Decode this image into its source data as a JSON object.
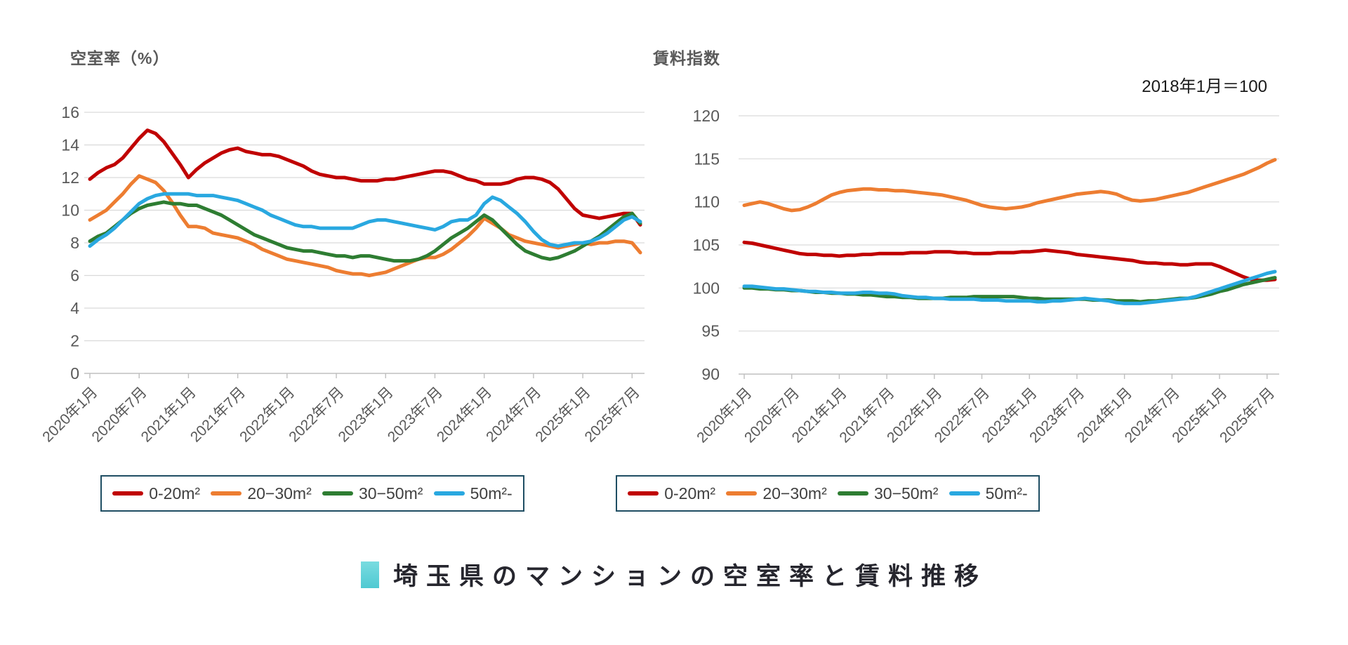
{
  "chart_data": [
    {
      "id": "vacancy",
      "type": "line",
      "title": "空室率（%）",
      "ylabel": "空室率（%）",
      "ylim": [
        0,
        16
      ],
      "y_ticks": [
        0,
        2,
        4,
        6,
        8,
        10,
        12,
        14,
        16
      ],
      "grid": true,
      "legend_position": "bottom",
      "x_unit": "month",
      "x_start_label": "2020年1月",
      "x_end_label": "2025年7月",
      "x_tick_labels": [
        "2020年1月",
        "2020年7月",
        "2021年1月",
        "2021年7月",
        "2022年1月",
        "2022年7月",
        "2023年1月",
        "2023年7月",
        "2024年1月",
        "2024年7月",
        "2025年1月",
        "2025年7月"
      ],
      "x_tick_indices": [
        0,
        6,
        12,
        18,
        24,
        30,
        36,
        42,
        48,
        54,
        60,
        66
      ],
      "series": [
        {
          "name": "0-20m²",
          "color": "#c00000",
          "values": [
            11.9,
            12.3,
            12.6,
            12.8,
            13.2,
            13.8,
            14.4,
            14.9,
            14.7,
            14.2,
            13.5,
            12.8,
            12.0,
            12.5,
            12.9,
            13.2,
            13.5,
            13.7,
            13.8,
            13.6,
            13.5,
            13.4,
            13.4,
            13.3,
            13.1,
            12.9,
            12.7,
            12.4,
            12.2,
            12.1,
            12.0,
            12.0,
            11.9,
            11.8,
            11.8,
            11.8,
            11.9,
            11.9,
            12.0,
            12.1,
            12.2,
            12.3,
            12.4,
            12.4,
            12.3,
            12.1,
            11.9,
            11.8,
            11.6,
            11.6,
            11.6,
            11.7,
            11.9,
            12.0,
            12.0,
            11.9,
            11.7,
            11.3,
            10.7,
            10.1,
            9.7,
            9.6,
            9.5,
            9.6,
            9.7,
            9.8,
            9.8,
            9.1
          ]
        },
        {
          "name": "20−30m²",
          "color": "#ed7d31",
          "values": [
            9.4,
            9.7,
            10.0,
            10.5,
            11.0,
            11.6,
            12.1,
            11.9,
            11.7,
            11.2,
            10.5,
            9.7,
            9.0,
            9.0,
            8.9,
            8.6,
            8.5,
            8.4,
            8.3,
            8.1,
            7.9,
            7.6,
            7.4,
            7.2,
            7.0,
            6.9,
            6.8,
            6.7,
            6.6,
            6.5,
            6.3,
            6.2,
            6.1,
            6.1,
            6.0,
            6.1,
            6.2,
            6.4,
            6.6,
            6.8,
            7.0,
            7.1,
            7.1,
            7.3,
            7.6,
            8.0,
            8.4,
            8.9,
            9.5,
            9.2,
            8.9,
            8.5,
            8.3,
            8.1,
            8.0,
            7.9,
            7.8,
            7.7,
            7.8,
            7.9,
            8.0,
            7.9,
            8.0,
            8.0,
            8.1,
            8.1,
            8.0,
            7.4
          ]
        },
        {
          "name": "30−50m²",
          "color": "#2e7d32",
          "values": [
            8.1,
            8.4,
            8.6,
            9.0,
            9.4,
            9.8,
            10.1,
            10.3,
            10.4,
            10.5,
            10.4,
            10.4,
            10.3,
            10.3,
            10.1,
            9.9,
            9.7,
            9.4,
            9.1,
            8.8,
            8.5,
            8.3,
            8.1,
            7.9,
            7.7,
            7.6,
            7.5,
            7.5,
            7.4,
            7.3,
            7.2,
            7.2,
            7.1,
            7.2,
            7.2,
            7.1,
            7.0,
            6.9,
            6.9,
            6.9,
            7.0,
            7.2,
            7.5,
            7.9,
            8.3,
            8.6,
            8.9,
            9.3,
            9.7,
            9.4,
            8.9,
            8.4,
            7.9,
            7.5,
            7.3,
            7.1,
            7.0,
            7.1,
            7.3,
            7.5,
            7.8,
            8.1,
            8.4,
            8.8,
            9.2,
            9.6,
            9.8,
            9.2
          ]
        },
        {
          "name": "50m²-",
          "color": "#29a8e0",
          "values": [
            7.8,
            8.2,
            8.5,
            8.9,
            9.4,
            9.9,
            10.4,
            10.7,
            10.9,
            11.0,
            11.0,
            11.0,
            11.0,
            10.9,
            10.9,
            10.9,
            10.8,
            10.7,
            10.6,
            10.4,
            10.2,
            10.0,
            9.7,
            9.5,
            9.3,
            9.1,
            9.0,
            9.0,
            8.9,
            8.9,
            8.9,
            8.9,
            8.9,
            9.1,
            9.3,
            9.4,
            9.4,
            9.3,
            9.2,
            9.1,
            9.0,
            8.9,
            8.8,
            9.0,
            9.3,
            9.4,
            9.4,
            9.7,
            10.4,
            10.8,
            10.6,
            10.2,
            9.8,
            9.3,
            8.7,
            8.2,
            7.9,
            7.8,
            7.9,
            8.0,
            8.0,
            8.1,
            8.3,
            8.6,
            9.0,
            9.4,
            9.6,
            9.3
          ]
        }
      ]
    },
    {
      "id": "rent-index",
      "type": "line",
      "title": "賃料指数",
      "note": "2018年1月＝100",
      "ylabel": "賃料指数",
      "ylim": [
        90,
        120
      ],
      "y_ticks": [
        90,
        95,
        100,
        105,
        110,
        115,
        120
      ],
      "grid": true,
      "legend_position": "bottom",
      "x_unit": "month",
      "x_start_label": "2020年1月",
      "x_end_label": "2025年7月",
      "x_tick_labels": [
        "2020年1月",
        "2020年7月",
        "2021年1月",
        "2021年7月",
        "2022年1月",
        "2022年7月",
        "2023年1月",
        "2023年7月",
        "2024年1月",
        "2024年7月",
        "2025年1月",
        "2025年7月"
      ],
      "x_tick_indices": [
        0,
        6,
        12,
        18,
        24,
        30,
        36,
        42,
        48,
        54,
        60,
        66
      ],
      "series": [
        {
          "name": "0-20m²",
          "color": "#c00000",
          "values": [
            105.3,
            105.2,
            105.0,
            104.8,
            104.6,
            104.4,
            104.2,
            104.0,
            103.9,
            103.9,
            103.8,
            103.8,
            103.7,
            103.8,
            103.8,
            103.9,
            103.9,
            104.0,
            104.0,
            104.0,
            104.0,
            104.1,
            104.1,
            104.1,
            104.2,
            104.2,
            104.2,
            104.1,
            104.1,
            104.0,
            104.0,
            104.0,
            104.1,
            104.1,
            104.1,
            104.2,
            104.2,
            104.3,
            104.4,
            104.3,
            104.2,
            104.1,
            103.9,
            103.8,
            103.7,
            103.6,
            103.5,
            103.4,
            103.3,
            103.2,
            103.0,
            102.9,
            102.9,
            102.8,
            102.8,
            102.7,
            102.7,
            102.8,
            102.8,
            102.8,
            102.5,
            102.1,
            101.7,
            101.3,
            101.0,
            100.9,
            100.9,
            101.0
          ]
        },
        {
          "name": "20−30m²",
          "color": "#ed7d31",
          "values": [
            109.6,
            109.8,
            110.0,
            109.8,
            109.5,
            109.2,
            109.0,
            109.1,
            109.4,
            109.8,
            110.3,
            110.8,
            111.1,
            111.3,
            111.4,
            111.5,
            111.5,
            111.4,
            111.4,
            111.3,
            111.3,
            111.2,
            111.1,
            111.0,
            110.9,
            110.8,
            110.6,
            110.4,
            110.2,
            109.9,
            109.6,
            109.4,
            109.3,
            109.2,
            109.3,
            109.4,
            109.6,
            109.9,
            110.1,
            110.3,
            110.5,
            110.7,
            110.9,
            111.0,
            111.1,
            111.2,
            111.1,
            110.9,
            110.5,
            110.2,
            110.1,
            110.2,
            110.3,
            110.5,
            110.7,
            110.9,
            111.1,
            111.4,
            111.7,
            112.0,
            112.3,
            112.6,
            112.9,
            113.2,
            113.6,
            114.0,
            114.5,
            114.9
          ]
        },
        {
          "name": "30−50m²",
          "color": "#2e7d32",
          "values": [
            100.0,
            100.0,
            99.9,
            99.9,
            99.8,
            99.8,
            99.7,
            99.7,
            99.6,
            99.5,
            99.5,
            99.4,
            99.4,
            99.3,
            99.3,
            99.2,
            99.2,
            99.1,
            99.0,
            99.0,
            98.9,
            98.9,
            98.8,
            98.8,
            98.8,
            98.8,
            98.9,
            98.9,
            98.9,
            99.0,
            99.0,
            99.0,
            99.0,
            99.0,
            99.0,
            98.9,
            98.8,
            98.8,
            98.7,
            98.7,
            98.7,
            98.7,
            98.7,
            98.7,
            98.6,
            98.6,
            98.6,
            98.5,
            98.5,
            98.5,
            98.4,
            98.5,
            98.5,
            98.6,
            98.7,
            98.8,
            98.8,
            98.9,
            99.1,
            99.3,
            99.6,
            99.8,
            100.1,
            100.4,
            100.6,
            100.8,
            101.0,
            101.2
          ]
        },
        {
          "name": "50m²-",
          "color": "#29a8e0",
          "values": [
            100.2,
            100.2,
            100.1,
            100.0,
            99.9,
            99.9,
            99.8,
            99.7,
            99.6,
            99.6,
            99.5,
            99.5,
            99.4,
            99.4,
            99.4,
            99.5,
            99.5,
            99.4,
            99.4,
            99.3,
            99.1,
            99.0,
            98.9,
            98.9,
            98.8,
            98.8,
            98.7,
            98.7,
            98.7,
            98.7,
            98.6,
            98.6,
            98.6,
            98.5,
            98.5,
            98.5,
            98.5,
            98.4,
            98.4,
            98.5,
            98.5,
            98.6,
            98.7,
            98.8,
            98.7,
            98.6,
            98.5,
            98.3,
            98.2,
            98.2,
            98.2,
            98.3,
            98.4,
            98.5,
            98.6,
            98.7,
            98.8,
            99.0,
            99.3,
            99.6,
            99.9,
            100.2,
            100.5,
            100.8,
            101.1,
            101.4,
            101.7,
            101.9
          ]
        }
      ]
    }
  ],
  "footer": {
    "title": "埼玉県のマンションの空室率と賃料推移",
    "bullet_color": "#4fc9d2"
  },
  "style_colors": {
    "gridline": "#d9d9d9",
    "axis_line": "#bfbfbf",
    "axis_text": "#595959",
    "legend_border": "#1f4e63",
    "background": "#ffffff"
  }
}
